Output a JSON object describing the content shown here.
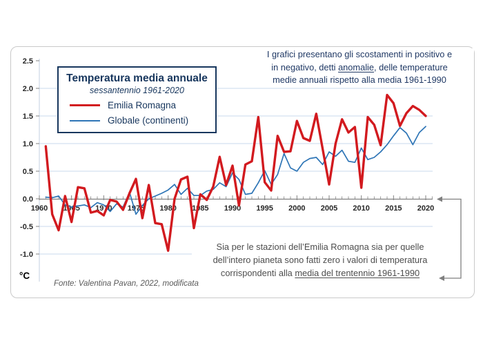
{
  "legend": {
    "title": "Temperatura media annuale",
    "subtitle": "sessantennio 1961-2020",
    "series": [
      {
        "label": "Emilia Romagna",
        "color": "#d21a1f",
        "swatch_thickness": 3.5
      },
      {
        "label": "Globale (continenti)",
        "color": "#2e75b6",
        "swatch_thickness": 2
      }
    ]
  },
  "annotation_top": {
    "line1": "I grafici presentano gli scostamenti in positivo e",
    "line2_pre": "in negativo, detti ",
    "line2_underlined": "anomalie",
    "line2_post": ", delle temperature",
    "line3": "medie annuali rispetto alla media 1961-1990"
  },
  "annotation_bottom": {
    "line1": "Sia per le stazioni dell’Emilia Romagna sia per quelle",
    "line2": "dell’intero pianeta sono fatti zero i valori di temperatura",
    "line3_pre": "corrispondenti alla ",
    "line3_underlined": "media del trentennio 1961-1990"
  },
  "footer": {
    "unit_label": "°C",
    "source": "Fonte: Valentina Pavan, 2022, modificata"
  },
  "colors": {
    "emilia_romagna": "#d21a1f",
    "globale": "#2e75b6",
    "navy_text": "#1f3864",
    "gridline": "#c9d9ed",
    "axis": "#808080",
    "connector": "#7f7f7f",
    "axis_label": "#262626",
    "frame_border": "#c9c9c9"
  },
  "chart_data": {
    "type": "line",
    "title": "Temperatura media annuale",
    "subtitle": "sessantennio 1961-2020",
    "ylabel": "°C",
    "xlabel": "",
    "grid": true,
    "legend_position": "top-left",
    "ylim": [
      -1.2,
      2.5
    ],
    "y_ticks": [
      2.5,
      2.0,
      1.5,
      1.0,
      0.5,
      0.0,
      -0.5,
      -1.0
    ],
    "x_ticks": [
      1960,
      1965,
      1970,
      1975,
      1980,
      1985,
      1990,
      1995,
      2000,
      2005,
      2010,
      2015,
      2020
    ],
    "x": [
      1961,
      1962,
      1963,
      1964,
      1965,
      1966,
      1967,
      1968,
      1969,
      1970,
      1971,
      1972,
      1973,
      1974,
      1975,
      1976,
      1977,
      1978,
      1979,
      1980,
      1981,
      1982,
      1983,
      1984,
      1985,
      1986,
      1987,
      1988,
      1989,
      1990,
      1991,
      1992,
      1993,
      1994,
      1995,
      1996,
      1997,
      1998,
      1999,
      2000,
      2001,
      2002,
      2003,
      2004,
      2005,
      2006,
      2007,
      2008,
      2009,
      2010,
      2011,
      2012,
      2013,
      2014,
      2015,
      2016,
      2017,
      2018,
      2019,
      2020
    ],
    "series": [
      {
        "name": "Emilia Romagna",
        "color": "#d21a1f",
        "stroke_width": 3.4,
        "values": [
          0.95,
          -0.28,
          -0.57,
          0.05,
          -0.42,
          0.21,
          0.19,
          -0.25,
          -0.22,
          -0.3,
          -0.02,
          -0.05,
          -0.2,
          0.1,
          0.36,
          -0.35,
          0.25,
          -0.44,
          -0.46,
          -0.94,
          0.0,
          0.35,
          0.4,
          -0.53,
          0.08,
          -0.02,
          0.22,
          0.76,
          0.25,
          0.6,
          -0.12,
          0.62,
          0.68,
          1.48,
          0.3,
          0.15,
          1.14,
          0.85,
          0.86,
          1.41,
          1.1,
          1.05,
          1.54,
          0.9,
          0.26,
          1.0,
          1.44,
          1.2,
          1.3,
          0.2,
          1.48,
          1.34,
          0.97,
          1.88,
          1.73,
          1.32,
          1.55,
          1.68,
          1.61,
          1.5
        ]
      },
      {
        "name": "Globale (continenti)",
        "color": "#2e75b6",
        "stroke_width": 1.7,
        "values": [
          0.03,
          0.02,
          0.05,
          -0.11,
          -0.15,
          -0.13,
          -0.11,
          -0.16,
          -0.07,
          -0.11,
          -0.23,
          -0.09,
          -0.15,
          0.12,
          -0.28,
          -0.12,
          0.0,
          0.05,
          0.1,
          0.16,
          0.26,
          0.08,
          0.19,
          0.06,
          0.06,
          0.14,
          0.17,
          0.29,
          0.22,
          0.47,
          0.35,
          0.08,
          0.1,
          0.29,
          0.51,
          0.26,
          0.44,
          0.82,
          0.56,
          0.5,
          0.66,
          0.73,
          0.75,
          0.62,
          0.85,
          0.77,
          0.88,
          0.68,
          0.66,
          0.92,
          0.71,
          0.75,
          0.85,
          0.98,
          1.14,
          1.29,
          1.19,
          0.98,
          1.2,
          1.31
        ]
      }
    ]
  }
}
